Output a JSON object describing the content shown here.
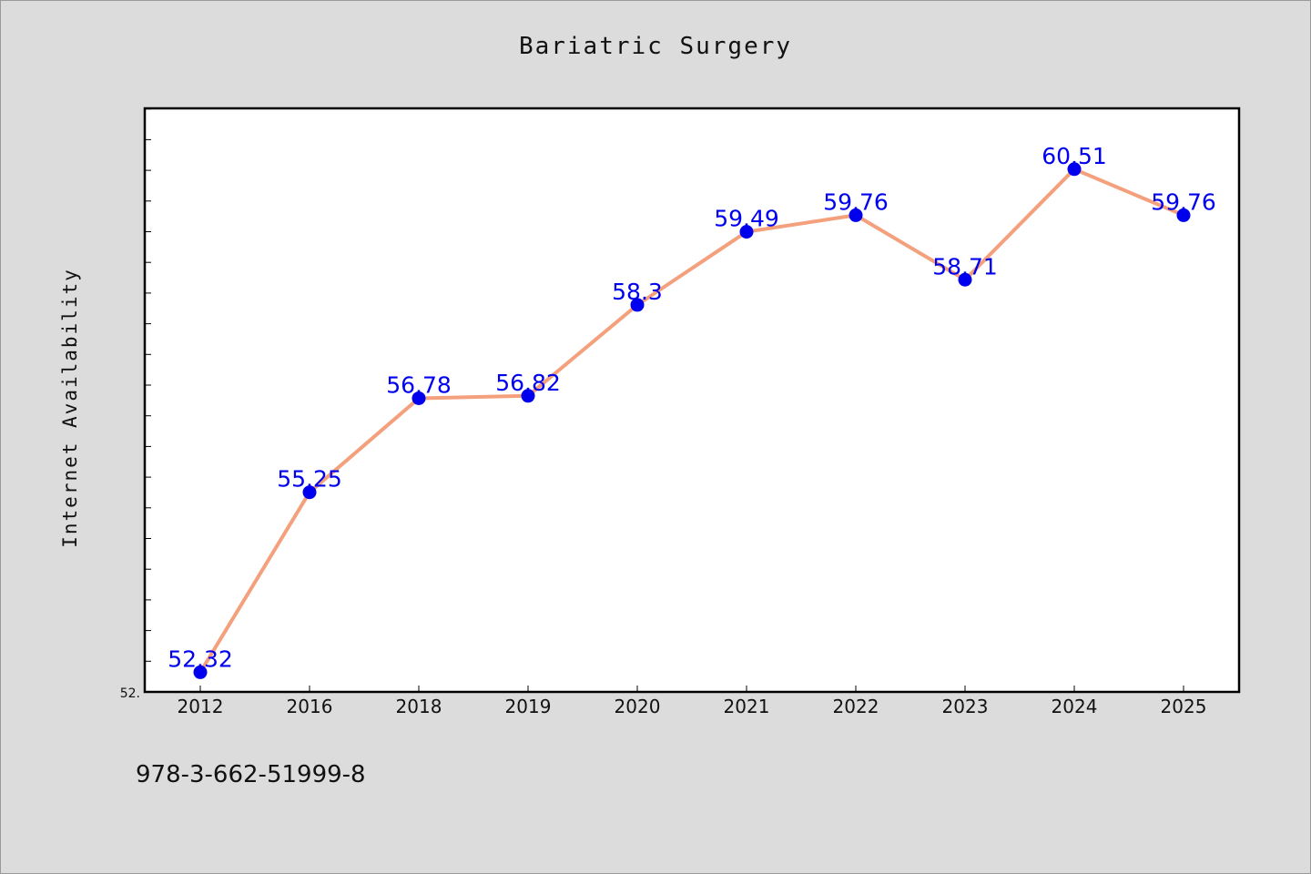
{
  "chart_data": {
    "type": "line",
    "title": "Bariatric Surgery",
    "ylabel": "Internet Availability",
    "xlabel": "",
    "categories": [
      "2012",
      "2016",
      "2018",
      "2019",
      "2020",
      "2021",
      "2022",
      "2023",
      "2024",
      "2025"
    ],
    "series": [
      {
        "values": [
          52.32,
          55.25,
          56.78,
          56.82,
          58.3,
          59.49,
          59.76,
          58.71,
          60.51,
          59.76
        ],
        "labels": [
          "52.32",
          "55.25",
          "56.78",
          "56.82",
          "58.3",
          "59.49",
          "59.76",
          "58.71",
          "60.51",
          "59.76"
        ]
      }
    ],
    "ylim": [
      52.0,
      61.5
    ],
    "y_tick_label": "52.",
    "grid": false,
    "line_color": "#f4a07d",
    "marker_color": "#0000ee",
    "label_color": "#0000ee"
  },
  "footer": {
    "text": "978-3-662-51999-8"
  }
}
